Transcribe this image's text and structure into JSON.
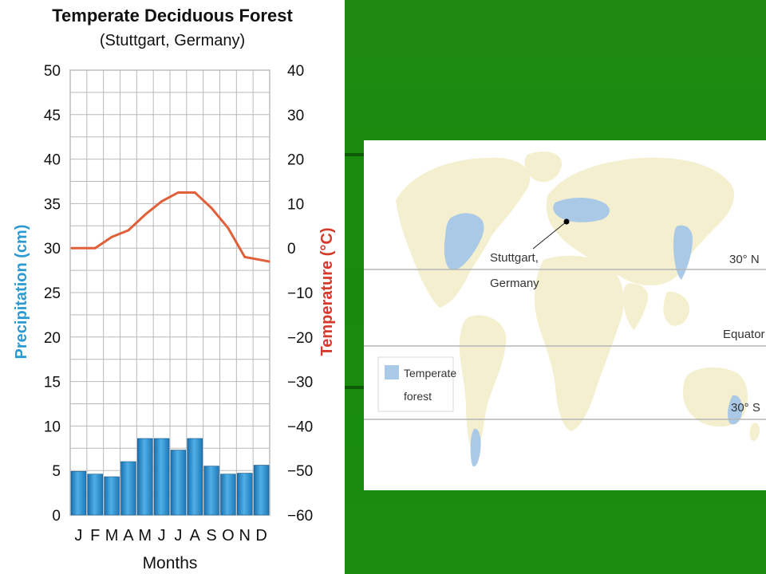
{
  "chart_data": {
    "type": "bar+line",
    "title": "Temperate Deciduous Forest",
    "subtitle": "(Stuttgart, Germany)",
    "xlabel": "Months",
    "ylabel_left": "Precipitation (cm)",
    "ylabel_right": "Temperature (°C)",
    "categories": [
      "J",
      "F",
      "M",
      "A",
      "M",
      "J",
      "J",
      "A",
      "S",
      "O",
      "N",
      "D"
    ],
    "left_ylim": [
      0,
      50
    ],
    "right_ylim": [
      -60,
      40
    ],
    "left_ticks": [
      "50",
      "45",
      "40",
      "35",
      "30",
      "25",
      "20",
      "15",
      "10",
      "5",
      "0"
    ],
    "right_ticks": [
      "40",
      "30",
      "20",
      "10",
      "0",
      "−10",
      "−20",
      "−30",
      "−40",
      "−50",
      "−60"
    ],
    "grid": true,
    "series": [
      {
        "name": "Precipitation",
        "kind": "bar",
        "axis": "left",
        "color": "#2f8fd0",
        "values": [
          4.9,
          4.6,
          4.3,
          6.0,
          8.6,
          8.6,
          7.3,
          8.6,
          5.5,
          4.6,
          4.7,
          5.6
        ]
      },
      {
        "name": "Temperature",
        "kind": "line",
        "axis": "right",
        "color": "#e0603a",
        "values": [
          0,
          0,
          2.5,
          4,
          7.5,
          10.5,
          12.5,
          12.5,
          9,
          4.5,
          -2,
          -3
        ]
      }
    ]
  },
  "map": {
    "location_label_line1": "Stuttgart,",
    "location_label_line2": "Germany",
    "lat_30n": "30° N",
    "equator": "Equator",
    "lat_30s": "30° S",
    "legend_line1": "Temperate",
    "legend_line2": "forest",
    "land_color": "#f3efcf",
    "forest_color": "#a9c9e6"
  }
}
